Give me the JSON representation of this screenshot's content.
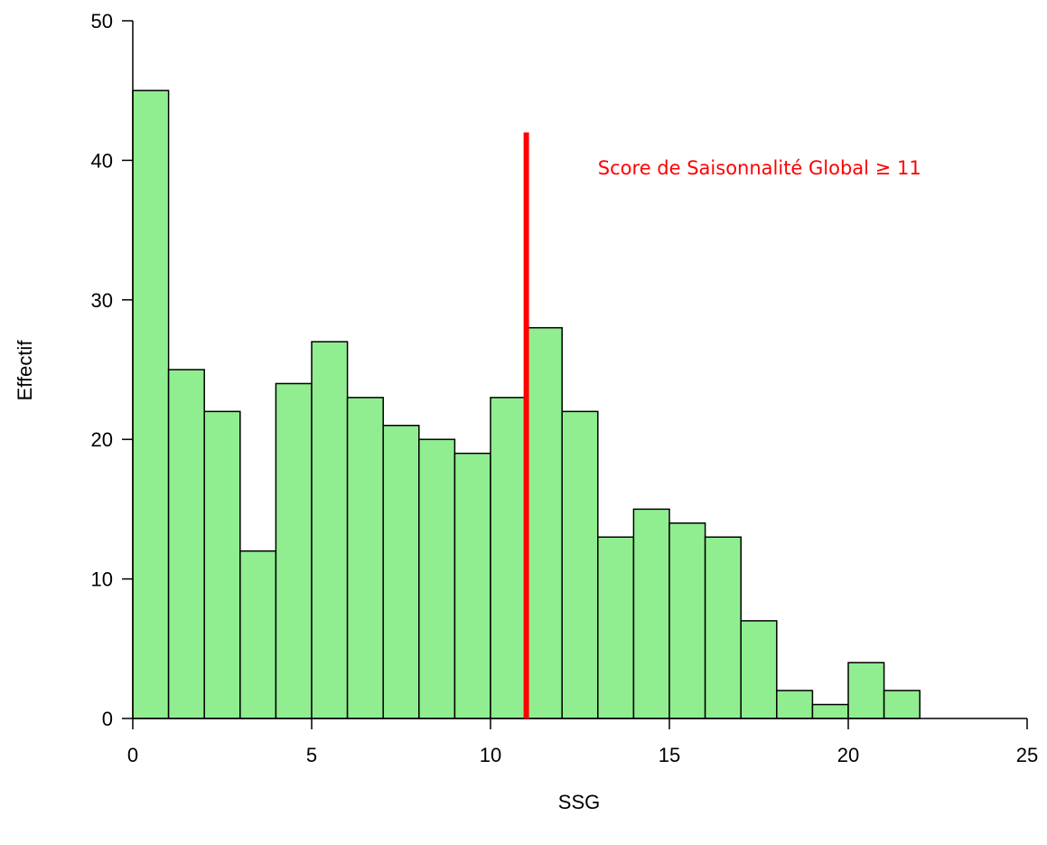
{
  "chart_data": {
    "type": "bar",
    "subtype": "histogram",
    "title": "",
    "xlabel": "SSG",
    "ylabel": "Effectif",
    "xlim": [
      0,
      25
    ],
    "ylim": [
      0,
      50
    ],
    "x_ticks": [
      "0",
      "5",
      "10",
      "15",
      "20",
      "25"
    ],
    "y_ticks": [
      "0",
      "10",
      "20",
      "30",
      "40",
      "50"
    ],
    "bin_width": 1,
    "bins": [
      {
        "start": 0,
        "end": 1,
        "count": 45
      },
      {
        "start": 1,
        "end": 2,
        "count": 25
      },
      {
        "start": 2,
        "end": 3,
        "count": 22
      },
      {
        "start": 3,
        "end": 4,
        "count": 12
      },
      {
        "start": 4,
        "end": 5,
        "count": 24
      },
      {
        "start": 5,
        "end": 6,
        "count": 27
      },
      {
        "start": 6,
        "end": 7,
        "count": 23
      },
      {
        "start": 7,
        "end": 8,
        "count": 21
      },
      {
        "start": 8,
        "end": 9,
        "count": 20
      },
      {
        "start": 9,
        "end": 10,
        "count": 19
      },
      {
        "start": 10,
        "end": 11,
        "count": 23
      },
      {
        "start": 11,
        "end": 12,
        "count": 28
      },
      {
        "start": 12,
        "end": 13,
        "count": 22
      },
      {
        "start": 13,
        "end": 14,
        "count": 13
      },
      {
        "start": 14,
        "end": 15,
        "count": 15
      },
      {
        "start": 15,
        "end": 16,
        "count": 14
      },
      {
        "start": 16,
        "end": 17,
        "count": 13
      },
      {
        "start": 17,
        "end": 18,
        "count": 7
      },
      {
        "start": 18,
        "end": 19,
        "count": 2
      },
      {
        "start": 19,
        "end": 20,
        "count": 1
      },
      {
        "start": 20,
        "end": 21,
        "count": 4
      },
      {
        "start": 21,
        "end": 22,
        "count": 2
      }
    ],
    "bar_color": "#90EE90",
    "bar_border_color": "#000000",
    "threshold_line": {
      "x": 11,
      "y_top": 42,
      "color": "#FF0000"
    },
    "annotation": {
      "text": "Score de Saisonnalité Global ≥ 11",
      "color": "#FF0000",
      "x": 13,
      "y": 39
    }
  }
}
